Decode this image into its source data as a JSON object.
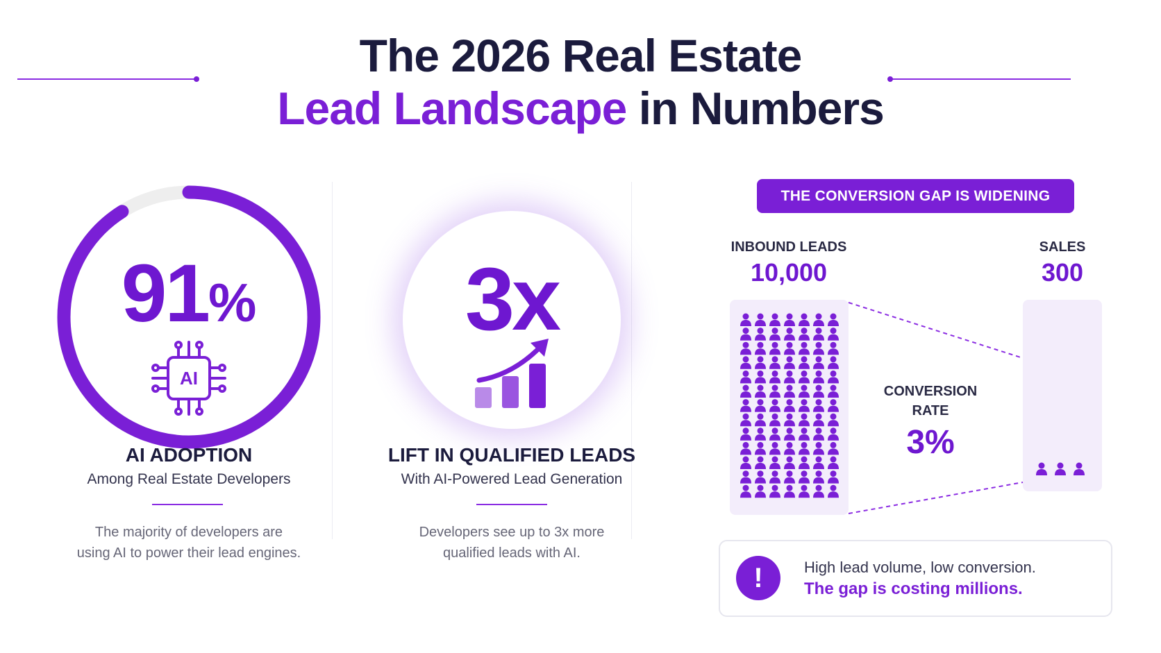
{
  "header": {
    "title_line1": "The 2026 Real Estate",
    "title_accent": "Lead Landscape",
    "title_rest": " in Numbers"
  },
  "colors": {
    "accent": "#7a1fd6",
    "accent_light": "#f3edfb",
    "ring_track": "#eeeeee",
    "heading": "#1b1b3d"
  },
  "ai_adoption": {
    "value_number": "91",
    "value_unit": "%",
    "progress_fraction": 0.91,
    "icon": "ai-chip-icon",
    "chip_label": "AI",
    "heading": "AI ADOPTION",
    "subheading": "Among Real Estate Developers",
    "description_line1": "The majority of developers are",
    "description_line2": "using AI to power their lead engines."
  },
  "qualified_leads": {
    "value": "3x",
    "icon": "growth-bar-chart-icon",
    "heading": "LIFT IN QUALIFIED LEADS",
    "subheading": "With AI-Powered Lead Generation",
    "description_line1": "Developers see up to 3x more",
    "description_line2": "qualified leads with AI."
  },
  "conversion": {
    "banner": "THE CONVERSION GAP IS WIDENING",
    "inbound_label": "INBOUND LEADS",
    "inbound_value": "10,000",
    "sales_label": "SALES",
    "sales_value": "300",
    "rate_label_line1": "CONVERSION",
    "rate_label_line2": "RATE",
    "rate_value": "3%",
    "person_icon": "person-icon"
  },
  "alert": {
    "icon": "exclamation-icon",
    "icon_glyph": "!",
    "line1": "High lead volume, low conversion.",
    "line2": "The gap is costing millions."
  }
}
